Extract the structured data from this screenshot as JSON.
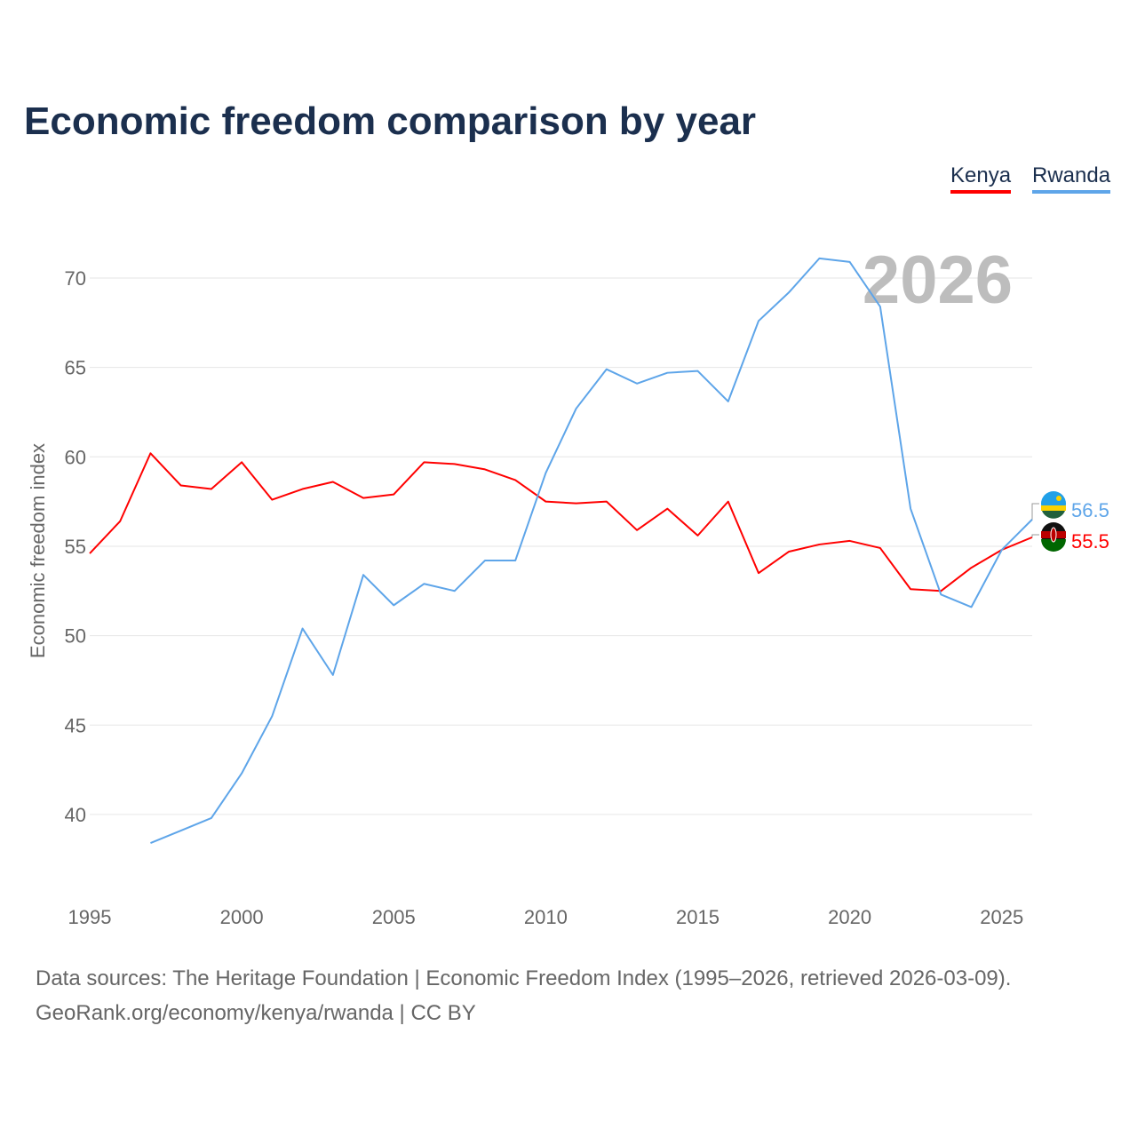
{
  "title": "Economic freedom comparison by year",
  "footer": {
    "line1": "Data sources: The Heritage Foundation | Economic Freedom Index (1995–2026, retrieved 2026-03-09).",
    "line2": "GeoRank.org/economy/kenya/rwanda | CC BY"
  },
  "chart_data": {
    "type": "line",
    "title": "Economic freedom comparison by year",
    "xlabel": "",
    "ylabel": "Economic freedom index",
    "year_watermark": "2026",
    "xlim": [
      1995,
      2026
    ],
    "ylim": [
      35,
      73
    ],
    "xticks": [
      "1995",
      "2000",
      "2005",
      "2010",
      "2015",
      "2020",
      "2025"
    ],
    "yticks": [
      "40",
      "45",
      "50",
      "55",
      "60",
      "65",
      "70"
    ],
    "grid": true,
    "legend_position": "top-right",
    "series": [
      {
        "name": "Kenya",
        "color": "#ff0000",
        "end_label": "55.5",
        "flag": "kenya-flag-icon",
        "x": [
          1995,
          1996,
          1997,
          1998,
          1999,
          2000,
          2001,
          2002,
          2003,
          2004,
          2005,
          2006,
          2007,
          2008,
          2009,
          2010,
          2011,
          2012,
          2013,
          2014,
          2015,
          2016,
          2017,
          2018,
          2019,
          2020,
          2021,
          2022,
          2023,
          2024,
          2025,
          2026
        ],
        "values": [
          54.6,
          56.4,
          60.2,
          58.4,
          58.2,
          59.7,
          57.6,
          58.2,
          58.6,
          57.7,
          57.9,
          59.7,
          59.6,
          59.3,
          58.7,
          57.5,
          57.4,
          57.5,
          55.9,
          57.1,
          55.6,
          57.5,
          53.5,
          54.7,
          55.1,
          55.3,
          54.9,
          52.6,
          52.5,
          53.8,
          54.8,
          55.5
        ]
      },
      {
        "name": "Rwanda",
        "color": "#5ea5e9",
        "end_label": "56.5",
        "flag": "rwanda-flag-icon",
        "x": [
          1997,
          1998,
          1999,
          2000,
          2001,
          2002,
          2003,
          2004,
          2005,
          2006,
          2007,
          2008,
          2009,
          2010,
          2011,
          2012,
          2013,
          2014,
          2015,
          2016,
          2017,
          2018,
          2019,
          2020,
          2021,
          2022,
          2023,
          2024,
          2025,
          2026
        ],
        "values": [
          38.4,
          39.1,
          39.8,
          42.3,
          45.5,
          50.4,
          47.8,
          53.4,
          51.7,
          52.9,
          52.5,
          54.2,
          54.2,
          59.1,
          62.7,
          64.9,
          64.1,
          64.7,
          64.8,
          63.1,
          67.6,
          69.2,
          71.1,
          70.9,
          68.4,
          57.1,
          52.3,
          51.6,
          54.8,
          56.5
        ]
      }
    ]
  }
}
